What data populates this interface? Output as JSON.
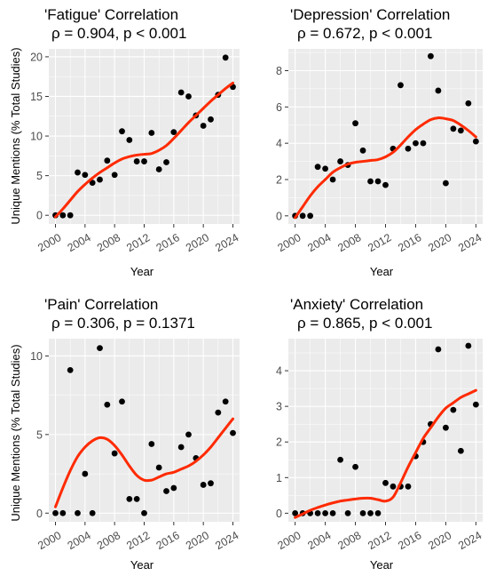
{
  "chart_data": [
    {
      "type": "scatter",
      "title": "'Fatigue' Correlation",
      "subtitle": "ρ = 0.904, p < 0.001",
      "xlabel": "Year",
      "ylabel": "Unique Mentions (% Total Studies)",
      "xlim": [
        1999.1,
        2024.9
      ],
      "ylim": [
        -1.1,
        21.0
      ],
      "xticks": [
        2000,
        2004,
        2008,
        2012,
        2016,
        2020,
        2024
      ],
      "yticks": [
        0,
        5,
        10,
        15,
        20
      ],
      "grid": true,
      "points": {
        "x": [
          2000,
          2001,
          2002,
          2003,
          2004,
          2005,
          2006,
          2007,
          2008,
          2009,
          2010,
          2011,
          2012,
          2013,
          2014,
          2015,
          2016,
          2017,
          2018,
          2019,
          2020,
          2021,
          2022,
          2023,
          2024
        ],
        "y": [
          0,
          0,
          0,
          5.4,
          5.1,
          4.1,
          4.5,
          6.9,
          5.1,
          10.6,
          9.5,
          6.8,
          6.8,
          10.4,
          5.8,
          6.7,
          10.5,
          15.5,
          15.0,
          12.6,
          11.3,
          12.1,
          15.2,
          19.9,
          16.2
        ]
      },
      "smooth": {
        "name": "",
        "color": "#ff2a00",
        "x": [
          2000,
          2001,
          2002,
          2003,
          2004,
          2005,
          2006,
          2007,
          2008,
          2009,
          2010,
          2011,
          2012,
          2013,
          2014,
          2015,
          2016,
          2017,
          2018,
          2019,
          2020,
          2021,
          2022,
          2023,
          2024
        ],
        "y": [
          -0.2,
          0.8,
          1.9,
          3.0,
          3.9,
          4.7,
          5.4,
          6.0,
          6.6,
          7.1,
          7.4,
          7.6,
          7.7,
          7.8,
          8.2,
          8.8,
          9.7,
          10.7,
          11.7,
          12.6,
          13.5,
          14.4,
          15.2,
          16.0,
          16.7
        ]
      }
    },
    {
      "type": "scatter",
      "title": "'Depression' Correlation",
      "subtitle": "ρ = 0.672, p < 0.001",
      "xlabel": "Year",
      "ylabel": "",
      "xlim": [
        1999.1,
        2024.9
      ],
      "ylim": [
        -0.45,
        9.2
      ],
      "xticks": [
        2000,
        2004,
        2008,
        2012,
        2016,
        2020,
        2024
      ],
      "yticks": [
        0,
        2,
        4,
        6,
        8
      ],
      "grid": true,
      "points": {
        "x": [
          2000,
          2001,
          2002,
          2003,
          2004,
          2005,
          2006,
          2007,
          2008,
          2009,
          2010,
          2011,
          2012,
          2013,
          2014,
          2015,
          2016,
          2017,
          2018,
          2019,
          2020,
          2021,
          2022,
          2023,
          2024
        ],
        "y": [
          0,
          0,
          0,
          2.7,
          2.6,
          2.0,
          3.0,
          2.8,
          5.1,
          3.6,
          1.9,
          1.9,
          1.7,
          3.7,
          7.2,
          3.7,
          4.0,
          4.0,
          8.8,
          6.9,
          1.8,
          4.8,
          4.7,
          6.2,
          4.1
        ]
      },
      "smooth": {
        "name": "",
        "color": "#ff2a00",
        "x": [
          2000,
          2001,
          2002,
          2003,
          2004,
          2005,
          2006,
          2007,
          2008,
          2009,
          2010,
          2011,
          2012,
          2013,
          2014,
          2015,
          2016,
          2017,
          2018,
          2019,
          2020,
          2021,
          2022,
          2023,
          2024
        ],
        "y": [
          -0.1,
          0.5,
          1.1,
          1.6,
          2.0,
          2.4,
          2.65,
          2.85,
          2.95,
          3.0,
          3.05,
          3.1,
          3.25,
          3.5,
          3.9,
          4.35,
          4.75,
          5.05,
          5.3,
          5.4,
          5.35,
          5.25,
          5.0,
          4.7,
          4.35
        ]
      }
    },
    {
      "type": "scatter",
      "title": "'Pain' Correlation",
      "subtitle": "ρ = 0.306, p = 0.1371",
      "xlabel": "Year",
      "ylabel": "Unique Mentions (% Total Studies)",
      "xlim": [
        1999.1,
        2024.9
      ],
      "ylim": [
        -0.55,
        11.1
      ],
      "xticks": [
        2000,
        2004,
        2008,
        2012,
        2016,
        2020,
        2024
      ],
      "yticks": [
        0,
        5,
        10
      ],
      "grid": true,
      "points": {
        "x": [
          2000,
          2001,
          2002,
          2003,
          2004,
          2005,
          2006,
          2007,
          2008,
          2009,
          2010,
          2011,
          2012,
          2013,
          2014,
          2015,
          2016,
          2017,
          2018,
          2019,
          2020,
          2021,
          2022,
          2023,
          2024
        ],
        "y": [
          0,
          0,
          9.1,
          0,
          2.5,
          0,
          10.5,
          6.9,
          3.8,
          7.1,
          0.9,
          0.9,
          0,
          4.4,
          2.9,
          1.4,
          1.6,
          4.2,
          5.0,
          3.5,
          1.8,
          1.9,
          6.4,
          7.1,
          5.1
        ]
      },
      "smooth": {
        "name": "",
        "color": "#ff2a00",
        "x": [
          2000,
          2001,
          2002,
          2003,
          2004,
          2005,
          2006,
          2007,
          2008,
          2009,
          2010,
          2011,
          2012,
          2013,
          2014,
          2015,
          2016,
          2017,
          2018,
          2019,
          2020,
          2021,
          2022,
          2023,
          2024
        ],
        "y": [
          0.4,
          1.6,
          2.7,
          3.6,
          4.2,
          4.6,
          4.8,
          4.7,
          4.3,
          3.7,
          3.0,
          2.4,
          2.1,
          2.1,
          2.3,
          2.5,
          2.6,
          2.8,
          3.0,
          3.3,
          3.7,
          4.2,
          4.8,
          5.4,
          6.0
        ]
      }
    },
    {
      "type": "scatter",
      "title": "'Anxiety' Correlation",
      "subtitle": "ρ = 0.865, p < 0.001",
      "xlabel": "Year",
      "ylabel": "",
      "xlim": [
        1999.1,
        2024.9
      ],
      "ylim": [
        -0.24,
        4.9
      ],
      "xticks": [
        2000,
        2004,
        2008,
        2012,
        2016,
        2020,
        2024
      ],
      "yticks": [
        0,
        1,
        2,
        3,
        4
      ],
      "grid": true,
      "points": {
        "x": [
          2000,
          2001,
          2002,
          2003,
          2004,
          2005,
          2006,
          2007,
          2008,
          2009,
          2010,
          2011,
          2012,
          2013,
          2014,
          2015,
          2016,
          2017,
          2018,
          2019,
          2020,
          2021,
          2022,
          2023,
          2024
        ],
        "y": [
          0,
          0,
          0,
          0,
          0,
          0,
          1.5,
          0,
          1.3,
          0,
          0,
          0,
          0.85,
          0.75,
          0.75,
          0.75,
          1.6,
          2.0,
          2.5,
          4.6,
          2.4,
          2.9,
          1.75,
          4.7,
          3.05
        ]
      },
      "smooth": {
        "name": "",
        "color": "#ff2a00",
        "x": [
          2000,
          2001,
          2002,
          2003,
          2004,
          2005,
          2006,
          2007,
          2008,
          2009,
          2010,
          2011,
          2012,
          2013,
          2014,
          2015,
          2016,
          2017,
          2018,
          2019,
          2020,
          2021,
          2022,
          2023,
          2024
        ],
        "y": [
          -0.12,
          -0.02,
          0.08,
          0.16,
          0.23,
          0.29,
          0.34,
          0.37,
          0.4,
          0.42,
          0.42,
          0.38,
          0.34,
          0.45,
          0.85,
          1.3,
          1.7,
          2.1,
          2.4,
          2.7,
          2.95,
          3.1,
          3.25,
          3.35,
          3.45
        ]
      }
    }
  ]
}
